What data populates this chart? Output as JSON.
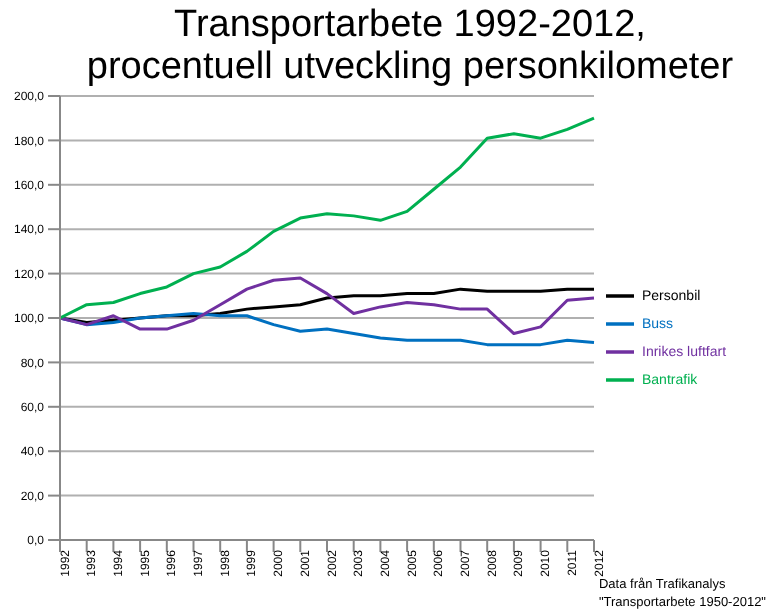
{
  "chart_data": {
    "type": "line",
    "title": "Transportarbete 1992-2012, procentuell utveckling personkilometer",
    "categories": [
      "1992",
      "1993",
      "1994",
      "1995",
      "1996",
      "1997",
      "1998",
      "1999",
      "2000",
      "2001",
      "2002",
      "2003",
      "2004",
      "2005",
      "2006",
      "2007",
      "2008",
      "2009",
      "2010",
      "2011",
      "2012"
    ],
    "series": [
      {
        "name": "Personbil",
        "color": "#000000",
        "values": [
          100,
          98,
          99,
          100,
          101,
          101,
          102,
          104,
          105,
          106,
          109,
          110,
          110,
          111,
          111,
          113,
          112,
          112,
          112,
          113,
          113
        ]
      },
      {
        "name": "Buss",
        "color": "#0070c0",
        "values": [
          100,
          97,
          98,
          100,
          101,
          102,
          101,
          101,
          97,
          94,
          95,
          93,
          91,
          90,
          90,
          90,
          88,
          88,
          88,
          90,
          89
        ]
      },
      {
        "name": "Inrikes luftfart",
        "color": "#7030a0",
        "values": [
          100,
          97,
          101,
          95,
          95,
          99,
          106,
          113,
          117,
          118,
          111,
          102,
          105,
          107,
          106,
          104,
          104,
          93,
          96,
          108,
          109
        ]
      },
      {
        "name": "Bantrafik",
        "color": "#00b050",
        "values": [
          100,
          106,
          107,
          111,
          114,
          120,
          123,
          130,
          139,
          145,
          147,
          146,
          144,
          148,
          158,
          168,
          181,
          183,
          181,
          185,
          190
        ]
      }
    ],
    "ylim": [
      0,
      200
    ],
    "yticks": [
      {
        "value": 0,
        "label": "0,0"
      },
      {
        "value": 20,
        "label": "20,0"
      },
      {
        "value": 40,
        "label": "40,0"
      },
      {
        "value": 60,
        "label": "60,0"
      },
      {
        "value": 80,
        "label": "80,0"
      },
      {
        "value": 100,
        "label": "100,0"
      },
      {
        "value": 120,
        "label": "120,0"
      },
      {
        "value": 140,
        "label": "140,0"
      },
      {
        "value": 160,
        "label": "160,0"
      },
      {
        "value": 180,
        "label": "180,0"
      },
      {
        "value": 200,
        "label": "200,0"
      }
    ],
    "grid": "y",
    "legend": "right",
    "marker": "none",
    "annotations": [
      "Data från Trafikanalys",
      "\"Transportarbete 1950-2012\""
    ]
  }
}
